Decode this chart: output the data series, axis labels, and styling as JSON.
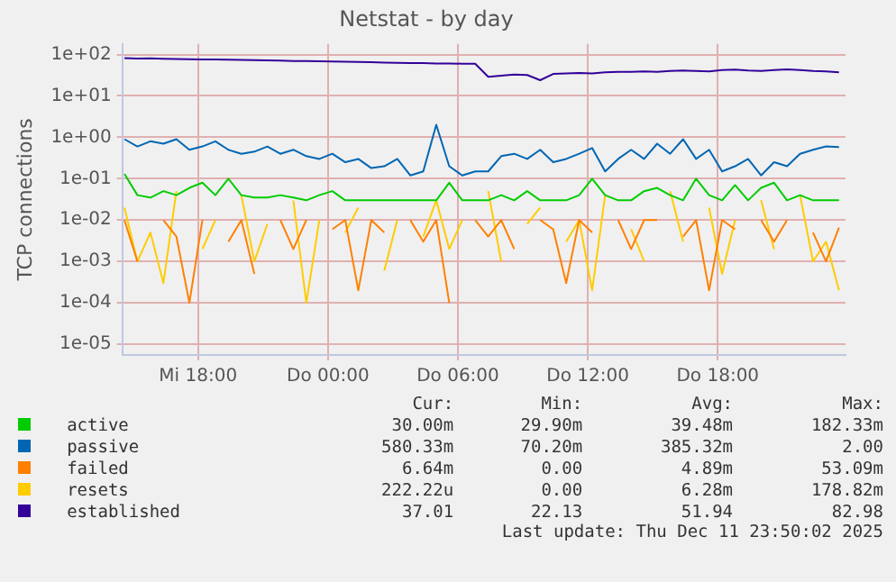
{
  "chart_data": {
    "type": "line",
    "title": "Netstat - by day",
    "ylabel": "TCP connections",
    "log": true,
    "grid": true,
    "legend": "bottom",
    "marker": "none",
    "line_style": "solid",
    "x": [
      "2025-12-10T14:36",
      "2025-12-10T15:12",
      "2025-12-10T15:48",
      "2025-12-10T16:24",
      "2025-12-10T17:00",
      "2025-12-10T17:36",
      "2025-12-10T18:12",
      "2025-12-10T18:48",
      "2025-12-10T19:24",
      "2025-12-10T20:00",
      "2025-12-10T20:36",
      "2025-12-10T21:12",
      "2025-12-10T21:48",
      "2025-12-10T22:24",
      "2025-12-10T23:00",
      "2025-12-10T23:36",
      "2025-12-11T00:12",
      "2025-12-11T00:48",
      "2025-12-11T01:24",
      "2025-12-11T02:00",
      "2025-12-11T02:36",
      "2025-12-11T03:12",
      "2025-12-11T03:48",
      "2025-12-11T04:24",
      "2025-12-11T05:00",
      "2025-12-11T05:36",
      "2025-12-11T06:12",
      "2025-12-11T06:48",
      "2025-12-11T07:24",
      "2025-12-11T08:00",
      "2025-12-11T08:36",
      "2025-12-11T09:12",
      "2025-12-11T09:48",
      "2025-12-11T10:24",
      "2025-12-11T11:00",
      "2025-12-11T11:36",
      "2025-12-11T12:12",
      "2025-12-11T12:48",
      "2025-12-11T13:24",
      "2025-12-11T14:00",
      "2025-12-11T14:36",
      "2025-12-11T15:12",
      "2025-12-11T15:48",
      "2025-12-11T16:24",
      "2025-12-11T17:00",
      "2025-12-11T17:36",
      "2025-12-11T18:12",
      "2025-12-11T18:48",
      "2025-12-11T19:24",
      "2025-12-11T20:00",
      "2025-12-11T20:36",
      "2025-12-11T21:12",
      "2025-12-11T21:48",
      "2025-12-11T22:24",
      "2025-12-11T23:00",
      "2025-12-11T23:36"
    ],
    "xlim": [
      "2025-12-10T14:30",
      "2025-12-11T23:54"
    ],
    "xticks": [
      {
        "value": "2025-12-10T18:00",
        "label": "Mi 18:00"
      },
      {
        "value": "2025-12-11T00:00",
        "label": "Do 00:00"
      },
      {
        "value": "2025-12-11T06:00",
        "label": "Do 06:00"
      },
      {
        "value": "2025-12-11T12:00",
        "label": "Do 12:00"
      },
      {
        "value": "2025-12-11T18:00",
        "label": "Do 18:00"
      }
    ],
    "ylim": [
      5.5e-06,
      180
    ],
    "yticks": [
      {
        "value": 1e-05,
        "label": "1e-05"
      },
      {
        "value": 0.0001,
        "label": "1e-04"
      },
      {
        "value": 0.001,
        "label": "1e-03"
      },
      {
        "value": 0.01,
        "label": "1e-02"
      },
      {
        "value": 0.1,
        "label": "1e-01"
      },
      {
        "value": 1,
        "label": "1e+00"
      },
      {
        "value": 10,
        "label": "1e+01"
      },
      {
        "value": 100,
        "label": "1e+02"
      }
    ],
    "series": [
      {
        "name": "active",
        "color": "#00cc00",
        "values": [
          0.13,
          0.04,
          0.035,
          0.05,
          0.04,
          0.06,
          0.08,
          0.04,
          0.1,
          0.04,
          0.035,
          0.035,
          0.04,
          0.035,
          0.03,
          0.04,
          0.05,
          0.03,
          0.03,
          0.03,
          0.03,
          0.03,
          0.03,
          0.03,
          0.03,
          0.08,
          0.03,
          0.03,
          0.03,
          0.04,
          0.03,
          0.05,
          0.03,
          0.03,
          0.03,
          0.04,
          0.1,
          0.04,
          0.03,
          0.03,
          0.05,
          0.06,
          0.04,
          0.03,
          0.1,
          0.04,
          0.03,
          0.07,
          0.03,
          0.06,
          0.08,
          0.03,
          0.04,
          0.03,
          0.03,
          0.03
        ]
      },
      {
        "name": "passive",
        "color": "#0066b3",
        "values": [
          0.9,
          0.6,
          0.8,
          0.7,
          0.9,
          0.5,
          0.6,
          0.8,
          0.5,
          0.4,
          0.45,
          0.6,
          0.4,
          0.5,
          0.35,
          0.3,
          0.4,
          0.25,
          0.3,
          0.18,
          0.2,
          0.3,
          0.12,
          0.15,
          2.0,
          0.2,
          0.12,
          0.15,
          0.15,
          0.35,
          0.4,
          0.3,
          0.5,
          0.25,
          0.3,
          0.4,
          0.55,
          0.15,
          0.3,
          0.5,
          0.3,
          0.7,
          0.4,
          0.9,
          0.3,
          0.5,
          0.15,
          0.2,
          0.3,
          0.12,
          0.25,
          0.2,
          0.4,
          0.5,
          0.6,
          0.58
        ]
      },
      {
        "name": "failed",
        "color": "#ff8000",
        "values": [
          0.01,
          0.001,
          null,
          0.01,
          0.004,
          0.0001,
          0.01,
          null,
          0.003,
          0.01,
          0.0005,
          null,
          0.01,
          0.002,
          0.01,
          null,
          0.006,
          0.01,
          0.0002,
          0.01,
          0.005,
          null,
          0.01,
          0.003,
          0.01,
          0.0001,
          null,
          0.01,
          0.004,
          0.01,
          0.002,
          null,
          0.01,
          0.006,
          0.0003,
          0.01,
          0.005,
          null,
          0.01,
          0.002,
          0.01,
          0.01,
          null,
          0.004,
          0.01,
          0.0002,
          0.01,
          0.006,
          null,
          0.01,
          0.003,
          0.01,
          null,
          0.005,
          0.001,
          0.0066
        ]
      },
      {
        "name": "resets",
        "color": "#ffcc00",
        "values": [
          0.02,
          0.001,
          0.005,
          0.0003,
          0.05,
          null,
          0.002,
          0.01,
          null,
          0.04,
          0.001,
          0.008,
          null,
          0.03,
          0.0001,
          0.01,
          null,
          0.005,
          0.02,
          null,
          0.0006,
          0.01,
          null,
          0.004,
          0.03,
          0.002,
          0.01,
          null,
          0.05,
          0.001,
          null,
          0.008,
          0.02,
          null,
          0.003,
          0.01,
          0.0002,
          0.04,
          null,
          0.006,
          0.001,
          null,
          0.05,
          0.003,
          null,
          0.02,
          0.0005,
          0.01,
          null,
          0.03,
          0.002,
          null,
          0.04,
          0.001,
          0.003,
          0.0002
        ]
      },
      {
        "name": "established",
        "color": "#330099",
        "values": [
          82,
          80,
          81,
          79,
          78,
          77,
          76,
          76,
          75,
          74,
          73,
          72,
          71,
          70,
          70,
          69,
          68,
          67,
          66,
          65,
          64,
          63,
          62,
          62,
          61,
          61,
          60,
          60,
          29,
          31,
          33,
          32,
          24,
          34,
          35,
          36,
          35,
          37,
          38,
          38,
          39,
          38,
          40,
          41,
          40,
          39,
          42,
          43,
          41,
          40,
          42,
          44,
          42,
          40,
          39,
          37
        ]
      }
    ],
    "annotations": [
      "Cur:",
      "Min:",
      "Avg:",
      "Max:",
      "30.00m",
      "29.90m",
      "39.48m",
      "182.33m",
      "580.33m",
      "70.20m",
      "385.32m",
      "2.00",
      "6.64m",
      "0.00",
      "4.89m",
      "53.09m",
      "222.22u",
      "0.00",
      "6.28m",
      "178.82m",
      "37.01",
      "22.13",
      "51.94",
      "82.98",
      "Last update: Thu Dec 11 23:50:02 2025"
    ]
  }
}
